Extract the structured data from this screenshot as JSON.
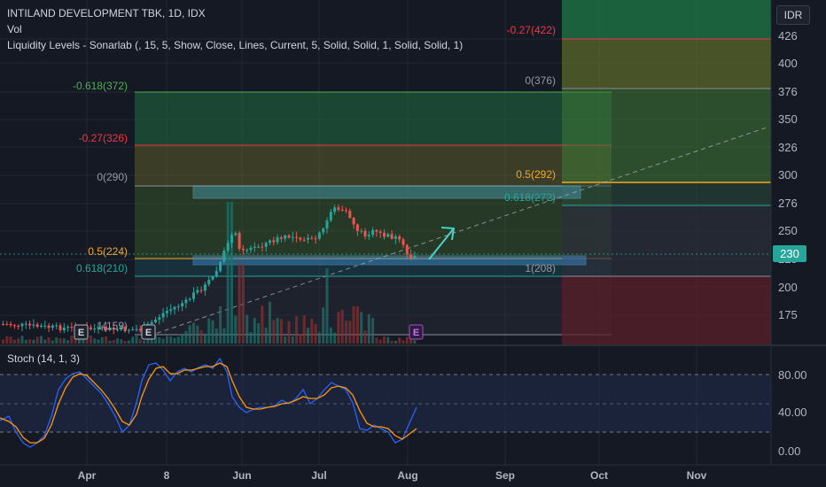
{
  "header": {
    "title": "INTILAND DEVELOPMENT TBK, 1D, IDX",
    "vol_label": "Vol",
    "indicator": "Liquidity Levels - Sonarlab (, 15, 5, Show, Close, Lines, Current, 5, Solid, Solid, 1, Solid, Solid, 1)"
  },
  "currency_button": "IDR",
  "price_axis": {
    "ticks": [
      "426",
      "400",
      "376",
      "350",
      "326",
      "300",
      "276",
      "250",
      "225",
      "200",
      "175"
    ],
    "current_price": "230"
  },
  "time_axis": {
    "labels": [
      "Apr",
      "8",
      "Jun",
      "Jul",
      "Aug",
      "Sep",
      "Oct",
      "Nov"
    ]
  },
  "fib_labels": {
    "n0618_372": "-0.618(372)",
    "n027_326": "-0.27(326)",
    "z290": "0(290)",
    "h224": "0.5(224)",
    "p0618_210": "0.618(210)",
    "one159": "1(159)",
    "r_n027_422": "-0.27(422)",
    "r_z376": "0(376)",
    "r_h292": "0.5(292)",
    "r_p0618_272": "0.618(272)",
    "r_one208": "1(208)"
  },
  "earnings_markers": [
    "E",
    "E",
    "E"
  ],
  "stoch": {
    "label": "Stoch (14, 1, 3)",
    "ticks": [
      "80.00",
      "40.00",
      "0.00"
    ]
  },
  "colors": {
    "background": "#151924",
    "up": "#26a69a",
    "down": "#ef5350",
    "accent_price": "#26a69a",
    "k_line": "#2962ff",
    "d_line": "#ff9800",
    "fib_orange": "#f5a623",
    "fib_red": "#f23645"
  }
}
